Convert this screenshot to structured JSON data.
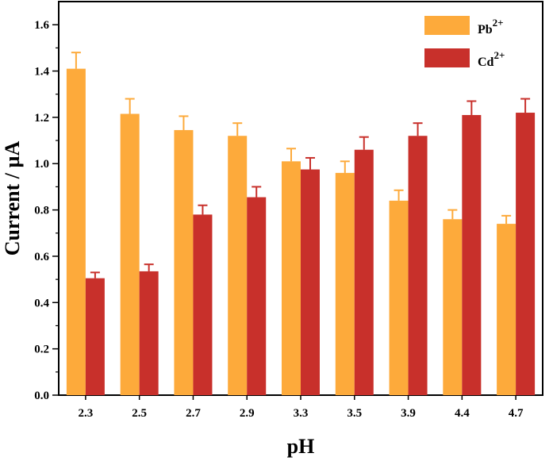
{
  "chart_data": {
    "type": "bar",
    "title": "",
    "xlabel": "pH",
    "ylabel": "Current / µA",
    "ylim": [
      0,
      1.7
    ],
    "yticks": [
      "0.0",
      "0.2",
      "0.4",
      "0.6",
      "0.8",
      "1.0",
      "1.2",
      "1.4",
      "1.6"
    ],
    "categories": [
      "2.3",
      "2.5",
      "2.7",
      "2.9",
      "3.3",
      "3.5",
      "3.9",
      "4.4",
      "4.7"
    ],
    "series": [
      {
        "name": "Pb",
        "superscript": "2+",
        "color": "#FDAA3B",
        "values": [
          1.41,
          1.215,
          1.145,
          1.12,
          1.01,
          0.96,
          0.84,
          0.76,
          0.74
        ],
        "errors": [
          0.07,
          0.065,
          0.06,
          0.055,
          0.055,
          0.05,
          0.045,
          0.04,
          0.035
        ]
      },
      {
        "name": "Cd",
        "superscript": "2+",
        "color": "#C8302B",
        "values": [
          0.505,
          0.535,
          0.78,
          0.855,
          0.975,
          1.06,
          1.12,
          1.21,
          1.22
        ],
        "errors": [
          0.025,
          0.03,
          0.04,
          0.045,
          0.05,
          0.055,
          0.055,
          0.06,
          0.06
        ]
      }
    ],
    "legend_position": "top-right"
  }
}
